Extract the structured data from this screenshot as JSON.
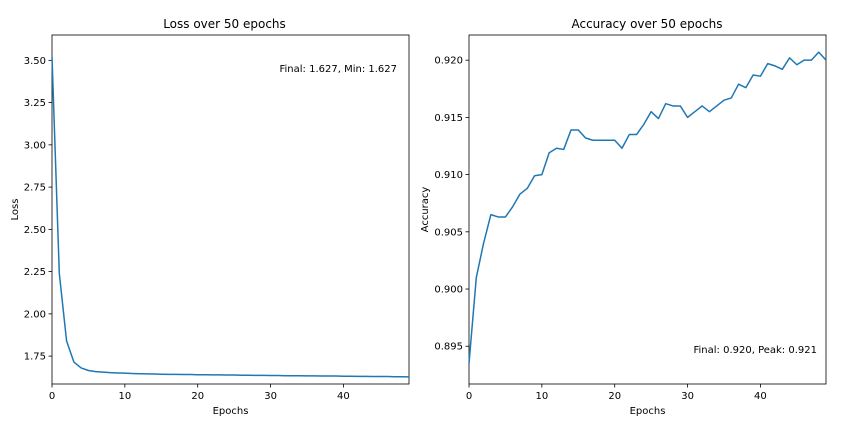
{
  "chart_data": [
    {
      "type": "line",
      "title": "Loss over 50 epochs",
      "xlabel": "Epochs",
      "ylabel": "Loss",
      "xlim": [
        0,
        49
      ],
      "ylim": [
        1.585,
        3.65
      ],
      "xticks": [
        "0",
        "10",
        "20",
        "30",
        "40"
      ],
      "yticks": [
        "1.75",
        "2.00",
        "2.25",
        "2.50",
        "2.75",
        "3.00",
        "3.25",
        "3.50"
      ],
      "annotation": "Final: 1.627, Min: 1.627",
      "grid": false,
      "series": [
        {
          "x": [
            0,
            1,
            2,
            3,
            4,
            5,
            6,
            7,
            8,
            9,
            10,
            11,
            12,
            13,
            14,
            15,
            16,
            17,
            18,
            19,
            20,
            21,
            22,
            23,
            24,
            25,
            26,
            27,
            28,
            29,
            30,
            31,
            32,
            33,
            34,
            35,
            36,
            37,
            38,
            39,
            40,
            41,
            42,
            43,
            44,
            45,
            46,
            47,
            48,
            49
          ],
          "values": [
            3.52,
            2.24,
            1.84,
            1.715,
            1.68,
            1.665,
            1.658,
            1.655,
            1.652,
            1.65,
            1.649,
            1.647,
            1.646,
            1.645,
            1.644,
            1.643,
            1.642,
            1.642,
            1.641,
            1.641,
            1.64,
            1.64,
            1.639,
            1.639,
            1.638,
            1.638,
            1.637,
            1.637,
            1.636,
            1.636,
            1.635,
            1.635,
            1.634,
            1.634,
            1.634,
            1.633,
            1.633,
            1.632,
            1.632,
            1.632,
            1.631,
            1.631,
            1.63,
            1.63,
            1.629,
            1.629,
            1.629,
            1.628,
            1.628,
            1.627
          ]
        }
      ]
    },
    {
      "type": "line",
      "title": "Accuracy over 50 epochs",
      "xlabel": "Epochs",
      "ylabel": "Accuracy",
      "xlim": [
        0,
        49
      ],
      "ylim": [
        0.8917,
        0.9222
      ],
      "xticks": [
        "0",
        "10",
        "20",
        "30",
        "40"
      ],
      "yticks": [
        "0.895",
        "0.900",
        "0.905",
        "0.910",
        "0.915",
        "0.920"
      ],
      "annotation": "Final: 0.920, Peak: 0.921",
      "grid": false,
      "series": [
        {
          "x": [
            0,
            1,
            2,
            3,
            4,
            5,
            6,
            7,
            8,
            9,
            10,
            11,
            12,
            13,
            14,
            15,
            16,
            17,
            18,
            19,
            20,
            21,
            22,
            23,
            24,
            25,
            26,
            27,
            28,
            29,
            30,
            31,
            32,
            33,
            34,
            35,
            36,
            37,
            38,
            39,
            40,
            41,
            42,
            43,
            44,
            45,
            46,
            47,
            48,
            49
          ],
          "values": [
            0.8935,
            0.901,
            0.904,
            0.9065,
            0.9063,
            0.9063,
            0.9072,
            0.9083,
            0.9088,
            0.9099,
            0.91,
            0.9119,
            0.9123,
            0.9122,
            0.9139,
            0.9139,
            0.9132,
            0.913,
            0.913,
            0.913,
            0.913,
            0.9123,
            0.9135,
            0.9135,
            0.9144,
            0.9155,
            0.9149,
            0.9162,
            0.916,
            0.916,
            0.915,
            0.9155,
            0.916,
            0.9155,
            0.916,
            0.9165,
            0.9167,
            0.9179,
            0.9176,
            0.9187,
            0.9186,
            0.9197,
            0.9195,
            0.9192,
            0.9202,
            0.9196,
            0.92,
            0.92,
            0.9207,
            0.92
          ]
        }
      ]
    }
  ]
}
